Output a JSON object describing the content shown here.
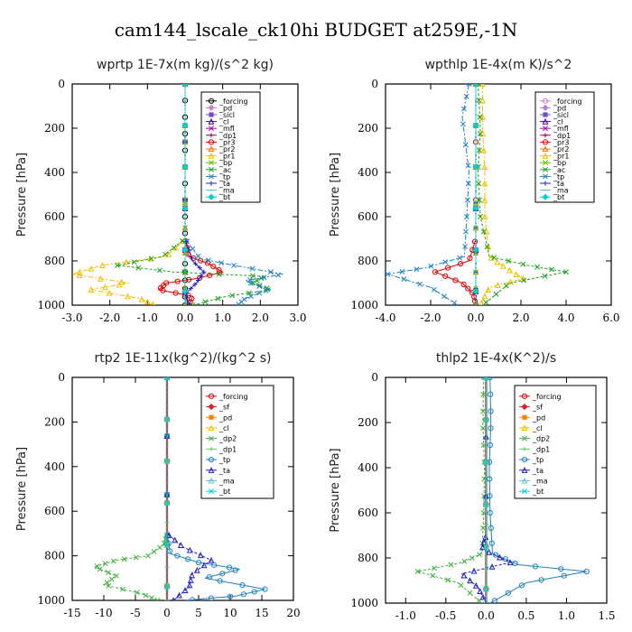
{
  "figure": {
    "title": "cam144_lscale_ck10hi  BUDGET at259E,-1N"
  },
  "chart_data": [
    {
      "type": "line",
      "title": "wprtp  1E-7x(m kg)/(s^2 kg)",
      "ylabel": "Pressure [hPa]",
      "xlim": [
        -3.0,
        3.0
      ],
      "ylim": [
        1000,
        0
      ],
      "xticks": [
        "-3.0",
        "-2.0",
        "-1.0",
        "0.0",
        "1.0",
        "2.0",
        "3.0"
      ],
      "xtick_values": [
        -3,
        -2,
        -1,
        0,
        1,
        2,
        3
      ],
      "yticks": [
        "0",
        "200",
        "400",
        "600",
        "800",
        "1000"
      ],
      "ytick_values": [
        0,
        200,
        400,
        600,
        800,
        1000
      ],
      "legend": [
        "_forcing",
        "_pd",
        "_sicl",
        "_cl",
        "_mfl",
        "_dp1",
        "_pr3",
        "_pr2",
        "_pr1",
        "_bp",
        "_ac",
        "_tp",
        "_ta",
        "_ma",
        "_bt"
      ],
      "series": [
        {
          "name": "_forcing",
          "color": "#000000",
          "x": [
            0,
            0,
            0,
            0,
            0,
            0,
            0
          ],
          "y": [
            0,
            200,
            400,
            600,
            800,
            900,
            1000
          ]
        },
        {
          "name": "_pd",
          "color": "#d080d0",
          "x": [
            0,
            0,
            0
          ],
          "y": [
            0,
            500,
            1000
          ]
        },
        {
          "name": "_sicl",
          "color": "#7050c0",
          "x": [
            0,
            0,
            0
          ],
          "y": [
            0,
            500,
            1000
          ]
        },
        {
          "name": "_cl",
          "color": "#4000a0",
          "x": [
            0,
            0,
            0
          ],
          "y": [
            0,
            500,
            1000
          ]
        },
        {
          "name": "_mfl",
          "color": "#b000b0",
          "x": [
            0,
            0,
            0
          ],
          "y": [
            0,
            500,
            1000
          ]
        },
        {
          "name": "_dp1",
          "color": "#a00060",
          "x": [
            0,
            0,
            0
          ],
          "y": [
            0,
            500,
            1000
          ]
        },
        {
          "name": "_pr3",
          "color": "#e00000",
          "x": [
            0,
            0,
            0.1,
            0.6,
            1.0,
            0.3,
            -0.5,
            -0.7,
            0.2,
            0.1
          ],
          "y": [
            0,
            700,
            780,
            810,
            850,
            880,
            900,
            930,
            960,
            1000
          ]
        },
        {
          "name": "_pr2",
          "color": "#ff7000",
          "x": [
            0,
            0,
            0,
            0
          ],
          "y": [
            0,
            500,
            800,
            1000
          ]
        },
        {
          "name": "_pr1",
          "color": "#f0c000",
          "x": [
            0,
            0,
            -0.5,
            -2.2,
            -3.0,
            -1.5,
            -2.5,
            -1.2,
            -0.8
          ],
          "y": [
            0,
            700,
            780,
            820,
            860,
            900,
            930,
            970,
            1000
          ]
        },
        {
          "name": "_bp",
          "color": "#60c000",
          "x": [
            0,
            0,
            0,
            0
          ],
          "y": [
            0,
            500,
            800,
            1000
          ]
        },
        {
          "name": "_ac",
          "color": "#20a020",
          "x": [
            0,
            0,
            -0.6,
            -1.8,
            -0.3,
            2.1,
            1.8,
            2.3,
            1.1,
            0.2
          ],
          "y": [
            0,
            700,
            780,
            820,
            850,
            870,
            900,
            930,
            960,
            1000
          ]
        },
        {
          "name": "_tp",
          "color": "#2080c0",
          "x": [
            0,
            0,
            0.4,
            1.3,
            2.6,
            1.6,
            2.2,
            1.6,
            1.4
          ],
          "y": [
            0,
            700,
            790,
            820,
            860,
            890,
            930,
            970,
            1000
          ]
        },
        {
          "name": "_ta",
          "color": "#2020c0",
          "x": [
            0,
            0,
            0.2,
            0.5,
            0.3,
            0.0,
            0.1
          ],
          "y": [
            0,
            700,
            800,
            850,
            900,
            950,
            1000
          ]
        },
        {
          "name": "_ma",
          "color": "#60c0c0",
          "x": [
            0,
            0,
            0
          ],
          "y": [
            0,
            500,
            1000
          ]
        },
        {
          "name": "_bt",
          "color": "#00d0d0",
          "x": [
            0,
            0,
            0
          ],
          "y": [
            0,
            500,
            1000
          ]
        }
      ]
    },
    {
      "type": "line",
      "title": "wpthlp  1E-4x(m K)/s^2",
      "ylabel": "Pressure [hPa]",
      "xlim": [
        -4.0,
        6.0
      ],
      "ylim": [
        1000,
        0
      ],
      "xticks": [
        "-4.0",
        "-2.0",
        "0.0",
        "2.0",
        "4.0",
        "6.0"
      ],
      "xtick_values": [
        -4,
        -2,
        0,
        2,
        4,
        6
      ],
      "yticks": [
        "0",
        "200",
        "400",
        "600",
        "800",
        "1000"
      ],
      "ytick_values": [
        0,
        200,
        400,
        600,
        800,
        1000
      ],
      "legend": [
        "_forcing",
        "_pd",
        "_sicl",
        "_cl",
        "_mfl",
        "_dp1",
        "_pr3",
        "_pr2",
        "_pr1",
        "_bp",
        "_ac",
        "_tp",
        "_ta",
        "_ma",
        "_bt"
      ],
      "series": [
        {
          "name": "_forcing",
          "color": "#d080d0",
          "x": [
            0,
            0,
            0
          ],
          "y": [
            0,
            500,
            1000
          ]
        },
        {
          "name": "_pd",
          "color": "#b080e0",
          "x": [
            0,
            0,
            0
          ],
          "y": [
            0,
            500,
            1000
          ]
        },
        {
          "name": "_sicl",
          "color": "#7050c0",
          "x": [
            0,
            0,
            0
          ],
          "y": [
            0,
            500,
            1000
          ]
        },
        {
          "name": "_cl",
          "color": "#4000a0",
          "x": [
            0,
            0,
            0
          ],
          "y": [
            0,
            500,
            1000
          ]
        },
        {
          "name": "_mfl",
          "color": "#b000b0",
          "x": [
            0,
            0,
            0
          ],
          "y": [
            0,
            500,
            1000
          ]
        },
        {
          "name": "_dp1",
          "color": "#a00060",
          "x": [
            0,
            0,
            0
          ],
          "y": [
            0,
            500,
            1000
          ]
        },
        {
          "name": "_pr3",
          "color": "#e00000",
          "x": [
            0,
            0,
            -0.3,
            -1.8,
            -0.6,
            -0.1,
            0
          ],
          "y": [
            0,
            700,
            800,
            850,
            900,
            950,
            1000
          ]
        },
        {
          "name": "_pr2",
          "color": "#ff7000",
          "x": [
            0,
            0,
            0,
            0
          ],
          "y": [
            0,
            500,
            800,
            1000
          ]
        },
        {
          "name": "_pr1",
          "color": "#f0c000",
          "x": [
            0.3,
            0.3,
            0.4,
            0.4,
            0.6,
            1.3,
            2.1,
            0.6,
            0.2
          ],
          "y": [
            0,
            200,
            400,
            600,
            780,
            830,
            880,
            920,
            1000
          ]
        },
        {
          "name": "_bp",
          "color": "#60c000",
          "x": [
            0,
            0,
            0,
            0
          ],
          "y": [
            0,
            500,
            800,
            1000
          ]
        },
        {
          "name": "_ac",
          "color": "#20a020",
          "x": [
            0.1,
            0.2,
            0.1,
            0.2,
            0.6,
            2.3,
            4.0,
            1.5,
            0.3
          ],
          "y": [
            0,
            200,
            400,
            600,
            780,
            820,
            850,
            900,
            1000
          ]
        },
        {
          "name": "_tp",
          "color": "#2080c0",
          "x": [
            -0.3,
            -0.6,
            -0.3,
            -0.4,
            -0.5,
            -2.2,
            -3.9,
            -2.0,
            -0.8
          ],
          "y": [
            0,
            150,
            400,
            600,
            780,
            830,
            860,
            920,
            1000
          ]
        },
        {
          "name": "_ta",
          "color": "#2020c0",
          "x": [
            0,
            0,
            0,
            0
          ],
          "y": [
            0,
            500,
            800,
            1000
          ]
        },
        {
          "name": "_ma",
          "color": "#60c0c0",
          "x": [
            0,
            0,
            0
          ],
          "y": [
            0,
            500,
            1000
          ]
        },
        {
          "name": "_bt",
          "color": "#00d0d0",
          "x": [
            0,
            0,
            0
          ],
          "y": [
            0,
            500,
            1000
          ]
        }
      ]
    },
    {
      "type": "line",
      "title": "rtp2  1E-11x(kg^2)/(kg^2 s)",
      "ylabel": "Pressure [hPa]",
      "xlim": [
        -15,
        20
      ],
      "ylim": [
        1000,
        0
      ],
      "xticks": [
        "-15",
        "-10",
        "-5",
        "0",
        "5",
        "10",
        "15",
        "20"
      ],
      "xtick_values": [
        -15,
        -10,
        -5,
        0,
        5,
        10,
        15,
        20
      ],
      "yticks": [
        "0",
        "200",
        "400",
        "600",
        "800",
        "1000"
      ],
      "ytick_values": [
        0,
        200,
        400,
        600,
        800,
        1000
      ],
      "legend": [
        "_forcing",
        "_sf",
        "_pd",
        "_cl",
        "_dp2",
        "_dp1",
        "_tp",
        "_ta",
        "_ma",
        "_bt"
      ],
      "series": [
        {
          "name": "_forcing",
          "color": "#e00000",
          "x": [
            0,
            0,
            0
          ],
          "y": [
            0,
            500,
            1000
          ]
        },
        {
          "name": "_sf",
          "color": "#e02020",
          "x": [
            0,
            0,
            0
          ],
          "y": [
            0,
            500,
            1000
          ]
        },
        {
          "name": "_pd",
          "color": "#ff8000",
          "x": [
            0,
            0,
            0
          ],
          "y": [
            0,
            500,
            1000
          ]
        },
        {
          "name": "_cl",
          "color": "#f0c000",
          "x": [
            0,
            0,
            0
          ],
          "y": [
            0,
            500,
            1000
          ]
        },
        {
          "name": "_dp2",
          "color": "#40b040",
          "x": [
            0,
            0,
            -0.5,
            -3,
            -8,
            -11.5,
            -8,
            -10,
            -4,
            -1.5
          ],
          "y": [
            0,
            700,
            750,
            800,
            820,
            850,
            890,
            930,
            970,
            1000
          ]
        },
        {
          "name": "_dp1",
          "color": "#60d060",
          "x": [
            0,
            0,
            0,
            0
          ],
          "y": [
            0,
            500,
            800,
            1000
          ]
        },
        {
          "name": "_tp",
          "color": "#2080c0",
          "x": [
            0,
            0,
            0.5,
            5,
            11.5,
            6,
            15.5,
            11,
            3
          ],
          "y": [
            0,
            700,
            790,
            830,
            860,
            900,
            950,
            980,
            1000
          ]
        },
        {
          "name": "_ta",
          "color": "#2020c0",
          "x": [
            0,
            0,
            2.5,
            7,
            4,
            3.5,
            1
          ],
          "y": [
            0,
            700,
            760,
            820,
            880,
            940,
            1000
          ]
        },
        {
          "name": "_ma",
          "color": "#60c0c0",
          "x": [
            0,
            0,
            0
          ],
          "y": [
            0,
            500,
            1000
          ]
        },
        {
          "name": "_bt",
          "color": "#00d0d0",
          "x": [
            0,
            0,
            0
          ],
          "y": [
            0,
            500,
            1000
          ]
        }
      ]
    },
    {
      "type": "line",
      "title": "thlp2  1E-4x(K^2)/s",
      "ylabel": "Pressure [hPa]",
      "xlim": [
        -1.25,
        1.5
      ],
      "ylim": [
        1000,
        0
      ],
      "xticks": [
        "-1.0",
        "-0.5",
        "0.0",
        "0.5",
        "1.0",
        "1.5"
      ],
      "xtick_values": [
        -1.0,
        -0.5,
        0.0,
        0.5,
        1.0,
        1.5
      ],
      "yticks": [
        "0",
        "200",
        "400",
        "600",
        "800",
        "1000"
      ],
      "ytick_values": [
        0,
        200,
        400,
        600,
        800,
        1000
      ],
      "legend": [
        "_forcing",
        "_sf",
        "_pd",
        "_cl",
        "_dp2",
        "_dp1",
        "_tp",
        "_ta",
        "_ma",
        "_bt"
      ],
      "series": [
        {
          "name": "_forcing",
          "color": "#e00000",
          "x": [
            0,
            0,
            0
          ],
          "y": [
            0,
            500,
            1000
          ]
        },
        {
          "name": "_sf",
          "color": "#e02020",
          "x": [
            0,
            0,
            0
          ],
          "y": [
            0,
            500,
            1000
          ]
        },
        {
          "name": "_pd",
          "color": "#ff8000",
          "x": [
            0,
            0,
            0
          ],
          "y": [
            0,
            500,
            1000
          ]
        },
        {
          "name": "_cl",
          "color": "#f0c000",
          "x": [
            0,
            0,
            0
          ],
          "y": [
            0,
            500,
            1000
          ]
        },
        {
          "name": "_dp2",
          "color": "#40b040",
          "x": [
            -0.03,
            -0.04,
            -0.02,
            -0.03,
            -0.05,
            -0.3,
            -0.85,
            -0.35,
            -0.05
          ],
          "y": [
            0,
            200,
            400,
            600,
            780,
            820,
            860,
            910,
            1000
          ]
        },
        {
          "name": "_dp1",
          "color": "#60d060",
          "x": [
            0,
            0,
            0,
            0
          ],
          "y": [
            0,
            500,
            800,
            1000
          ]
        },
        {
          "name": "_tp",
          "color": "#2080c0",
          "x": [
            0.05,
            0.06,
            0.04,
            0.05,
            0.08,
            0.4,
            1.25,
            0.5,
            0.05
          ],
          "y": [
            0,
            200,
            400,
            600,
            780,
            830,
            860,
            910,
            1000
          ]
        },
        {
          "name": "_ta",
          "color": "#2020c0",
          "x": [
            0,
            0,
            -0.05,
            0.3,
            -0.3,
            -0.1,
            0
          ],
          "y": [
            0,
            700,
            760,
            820,
            870,
            930,
            1000
          ]
        },
        {
          "name": "_ma",
          "color": "#60c0c0",
          "x": [
            0,
            0,
            0
          ],
          "y": [
            0,
            500,
            1000
          ]
        },
        {
          "name": "_bt",
          "color": "#00d0d0",
          "x": [
            0,
            0,
            0
          ],
          "y": [
            0,
            500,
            1000
          ]
        }
      ]
    }
  ]
}
